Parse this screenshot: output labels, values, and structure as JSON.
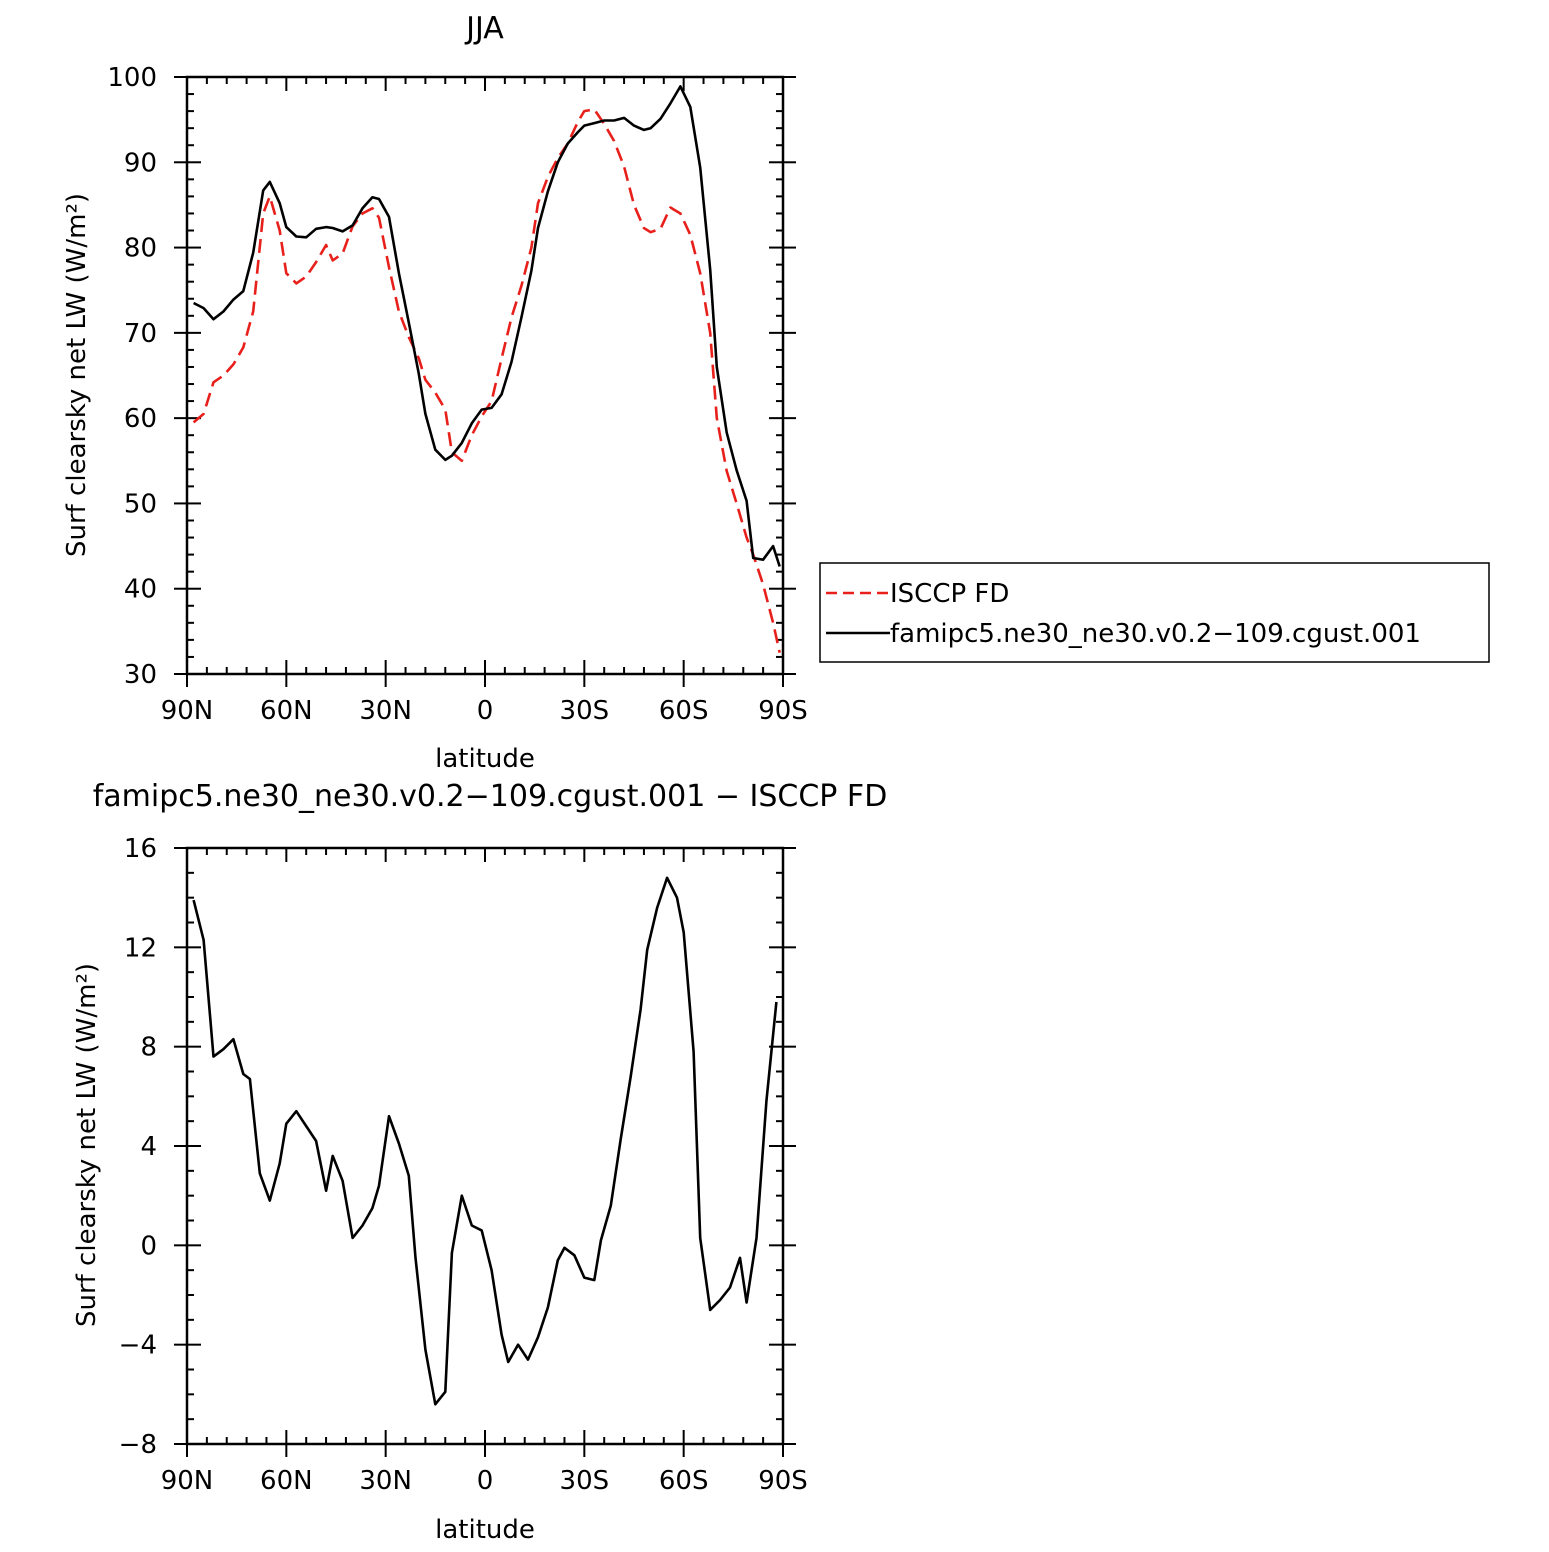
{
  "chart_data": [
    {
      "type": "line",
      "title": "JJA",
      "xlabel": "latitude",
      "ylabel": "Surf clearsky net LW (W/m²)",
      "xlim": [
        -90,
        90
      ],
      "ylim": [
        30,
        100
      ],
      "x_ticks": [
        {
          "value": -90,
          "label": "90N"
        },
        {
          "value": -60,
          "label": "60N"
        },
        {
          "value": -30,
          "label": "30N"
        },
        {
          "value": 0,
          "label": "0"
        },
        {
          "value": 30,
          "label": "30S"
        },
        {
          "value": 60,
          "label": "60S"
        },
        {
          "value": 90,
          "label": "90S"
        }
      ],
      "y_ticks": [
        30,
        40,
        50,
        60,
        70,
        80,
        90,
        100
      ],
      "legend_position": "right",
      "series": [
        {
          "name": "ISCCP FD",
          "color": "#e8201c",
          "dash": "dashed",
          "x": [
            -88,
            -85,
            -82,
            -79,
            -76,
            -73,
            -70,
            -67,
            -65,
            -62,
            -60,
            -57,
            -54,
            -51,
            -48,
            -46,
            -43,
            -40,
            -37,
            -34,
            -32,
            -29,
            -26,
            -23,
            -20,
            -18,
            -15,
            -12,
            -10,
            -7,
            -4,
            -1,
            2,
            5,
            8,
            11,
            14,
            16,
            19,
            22,
            25,
            28,
            30,
            33,
            36,
            39,
            42,
            45,
            48,
            50,
            53,
            56,
            59,
            62,
            65,
            68,
            70,
            73,
            76,
            79,
            81,
            84,
            87,
            89
          ],
          "values": [
            59.5,
            60.5,
            64.2,
            65,
            66.3,
            68.3,
            72.5,
            84,
            86,
            82,
            77,
            75.8,
            76.6,
            78.3,
            80.3,
            78.5,
            79.3,
            82.5,
            84,
            84.6,
            83.5,
            77.7,
            72.5,
            69.5,
            67,
            64.5,
            63,
            61,
            56,
            55,
            58,
            60.2,
            62,
            67,
            71.8,
            75.5,
            80,
            85.2,
            88.3,
            90.5,
            92.2,
            94.7,
            96,
            96.2,
            94.5,
            92.5,
            89.5,
            85,
            82.3,
            81.8,
            82.2,
            84.7,
            84,
            81.5,
            77,
            70,
            60,
            53.8,
            50,
            46,
            44,
            40.5,
            36,
            32.5
          ]
        },
        {
          "name": "famipc5.ne30_ne30.v0.2−109.cgust.001",
          "color": "#000000",
          "dash": "solid",
          "x": [
            -88,
            -85,
            -82,
            -79,
            -76,
            -73,
            -70,
            -67,
            -65,
            -62,
            -60,
            -57,
            -54,
            -51,
            -48,
            -46,
            -43,
            -40,
            -37,
            -34,
            -32,
            -29,
            -26,
            -23,
            -20,
            -18,
            -15,
            -12,
            -10,
            -7,
            -4,
            -1,
            2,
            5,
            8,
            11,
            14,
            16,
            19,
            22,
            25,
            28,
            30,
            33,
            36,
            39,
            42,
            45,
            48,
            50,
            53,
            56,
            59,
            62,
            65,
            68,
            70,
            73,
            76,
            79,
            81,
            84,
            87,
            89
          ],
          "values": [
            73.5,
            72.9,
            71.6,
            72.5,
            73.9,
            74.9,
            79.4,
            86.7,
            87.7,
            85.2,
            82.4,
            81.3,
            81.2,
            82.2,
            82.4,
            82.3,
            81.9,
            82.6,
            84.6,
            85.9,
            85.7,
            83.6,
            77,
            71.2,
            65.2,
            60.5,
            56.3,
            55.1,
            55.6,
            57.1,
            59.4,
            61,
            61.2,
            62.8,
            66.6,
            71.8,
            77.3,
            82.3,
            86.6,
            90,
            92.2,
            93.5,
            94.3,
            94.6,
            94.9,
            94.9,
            95.2,
            94.3,
            93.8,
            94,
            95.1,
            96.9,
            98.9,
            96.5,
            89.4,
            77.4,
            66,
            58.3,
            53.9,
            50.3,
            43.6,
            43.4,
            45,
            42.6
          ]
        }
      ]
    },
    {
      "type": "line",
      "title": "famipc5.ne30_ne30.v0.2−109.cgust.001 − ISCCP FD",
      "xlabel": "latitude",
      "ylabel": "Surf clearsky net LW (W/m²)",
      "xlim": [
        -90,
        90
      ],
      "ylim": [
        -8,
        16
      ],
      "x_ticks": [
        {
          "value": -90,
          "label": "90N"
        },
        {
          "value": -60,
          "label": "60N"
        },
        {
          "value": -30,
          "label": "30N"
        },
        {
          "value": 0,
          "label": "0"
        },
        {
          "value": 30,
          "label": "30S"
        },
        {
          "value": 60,
          "label": "60S"
        },
        {
          "value": 90,
          "label": "90S"
        }
      ],
      "y_ticks": [
        {
          "value": -8,
          "label": "−8"
        },
        {
          "value": -4,
          "label": "−4"
        },
        {
          "value": 0,
          "label": "0"
        },
        {
          "value": 4,
          "label": "4"
        },
        {
          "value": 8,
          "label": "8"
        },
        {
          "value": 12,
          "label": "12"
        },
        {
          "value": 16,
          "label": "16"
        }
      ],
      "series": [
        {
          "color": "#000000",
          "dash": "solid",
          "x": [
            -88,
            -85,
            -82,
            -79,
            -76,
            -73,
            -71,
            -68,
            -65,
            -62,
            -60,
            -57,
            -54,
            -51,
            -48,
            -46,
            -43,
            -40,
            -37,
            -34,
            -32,
            -29,
            -26,
            -23,
            -21,
            -18,
            -15,
            -12,
            -10,
            -7,
            -4,
            -1,
            2,
            5,
            7,
            10,
            13,
            16,
            19,
            22,
            24,
            27,
            30,
            33,
            35,
            38,
            41,
            44,
            47,
            49,
            52,
            55,
            58,
            60,
            63,
            65,
            68,
            71,
            74,
            77,
            79,
            82,
            85,
            88
          ],
          "values": [
            13.9,
            12.3,
            7.6,
            7.9,
            8.3,
            6.9,
            6.7,
            2.9,
            1.8,
            3.3,
            4.9,
            5.4,
            4.8,
            4.2,
            2.2,
            3.6,
            2.6,
            0.3,
            0.8,
            1.5,
            2.4,
            5.2,
            4.1,
            2.8,
            -0.5,
            -4.2,
            -6.4,
            -5.9,
            -0.3,
            2,
            0.8,
            0.6,
            -1,
            -3.6,
            -4.7,
            -4,
            -4.6,
            -3.7,
            -2.5,
            -0.6,
            -0.1,
            -0.4,
            -1.3,
            -1.4,
            0.2,
            1.6,
            4.3,
            6.8,
            9.5,
            11.9,
            13.6,
            14.8,
            14,
            12.6,
            7.8,
            0.3,
            -2.6,
            -2.2,
            -1.7,
            -0.5,
            -2.3,
            0.3,
            5.8,
            9.8
          ]
        }
      ]
    }
  ]
}
